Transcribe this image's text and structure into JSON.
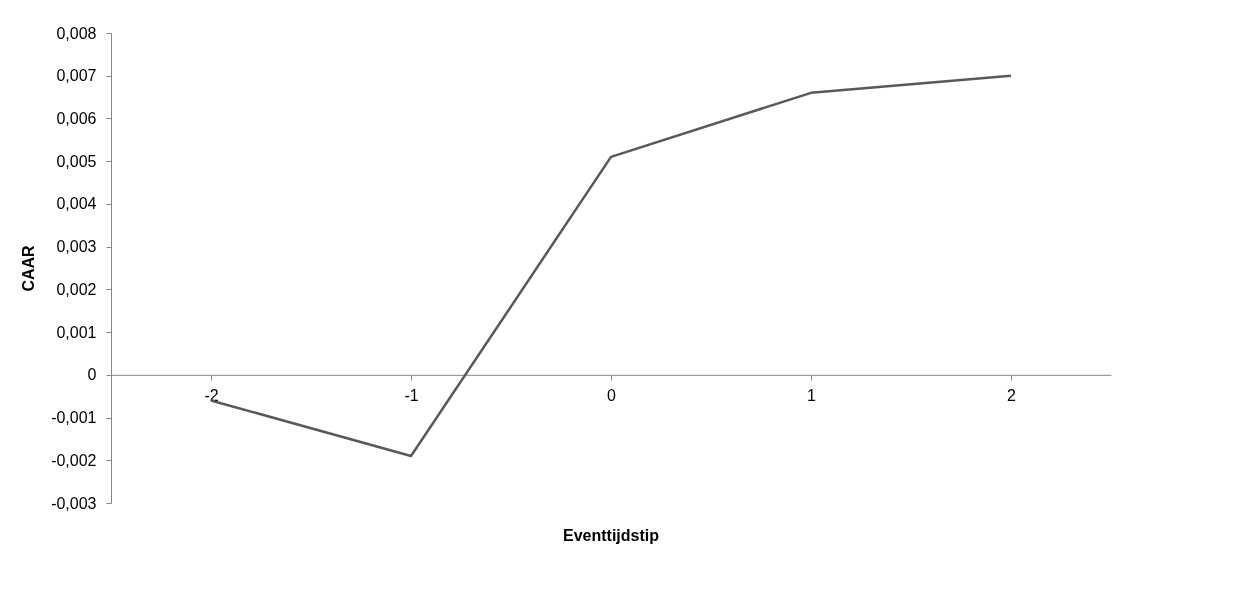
{
  "chart_data": {
    "type": "line",
    "xlabel": "Eventtijdstip",
    "ylabel": "CAAR",
    "categories": [
      "-2",
      "-1",
      "0",
      "1",
      "2"
    ],
    "series": [
      {
        "color": "#595959",
        "values": [
          -0.0006,
          -0.0019,
          0.0051,
          0.0066,
          0.007
        ]
      }
    ],
    "ylim": [
      -0.003,
      0.008
    ],
    "yticks": [
      {
        "value": -0.003,
        "label": "-0,003"
      },
      {
        "value": -0.002,
        "label": "-0,002"
      },
      {
        "value": -0.001,
        "label": "-0,001"
      },
      0,
      {
        "value": 0.001,
        "label": "0,001"
      },
      {
        "value": 0.002,
        "label": "0,002"
      },
      {
        "value": 0.003,
        "label": "0,003"
      },
      {
        "value": 0.004,
        "label": "0,004"
      },
      {
        "value": 0.005,
        "label": "0,005"
      },
      {
        "value": 0.006,
        "label": "0,006"
      },
      {
        "value": 0.007,
        "label": "0,007"
      },
      {
        "value": 0.008,
        "label": "0,008"
      }
    ],
    "grid": false,
    "marker": "none",
    "line_style": "solid"
  }
}
